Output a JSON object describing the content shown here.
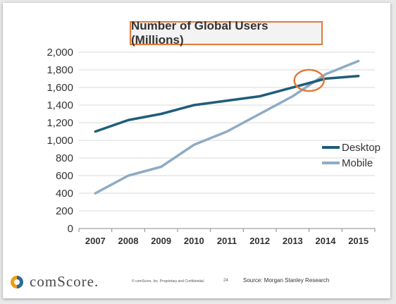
{
  "chart_data": {
    "type": "line",
    "title": "Number of Global Users (Millions)",
    "x": [
      "2007",
      "2008",
      "2009",
      "2010",
      "2011",
      "2012",
      "2013",
      "2014",
      "2015"
    ],
    "series": [
      {
        "name": "Desktop",
        "values": [
          1100,
          1230,
          1300,
          1400,
          1450,
          1500,
          1600,
          1700,
          1730
        ],
        "color": "#1f5d7a"
      },
      {
        "name": "Mobile",
        "values": [
          400,
          600,
          700,
          950,
          1100,
          1300,
          1500,
          1750,
          1900
        ],
        "color": "#8eabc4"
      }
    ],
    "ylim": [
      0,
      2000
    ],
    "yticks": [
      "0",
      "200",
      "400",
      "600",
      "800",
      "1,000",
      "1,200",
      "1,400",
      "1,600",
      "1,800",
      "2,000"
    ],
    "ytick_values": [
      0,
      200,
      400,
      600,
      800,
      1000,
      1200,
      1400,
      1600,
      1800,
      2000
    ],
    "grid": true,
    "legend": "right",
    "annotation": {
      "type": "circle",
      "x": "2013.5",
      "y": 1680,
      "color": "#e07b39"
    }
  },
  "footer": {
    "logo_text": "comScore.",
    "copyright": "© comScore, Inc.  Proprietary and Confidential.",
    "page": "24",
    "source": "Source: Morgan Stanley Research"
  },
  "colors": {
    "accent": "#e07b39",
    "logo_orange": "#f39c12",
    "logo_blue": "#2b6a9b"
  }
}
